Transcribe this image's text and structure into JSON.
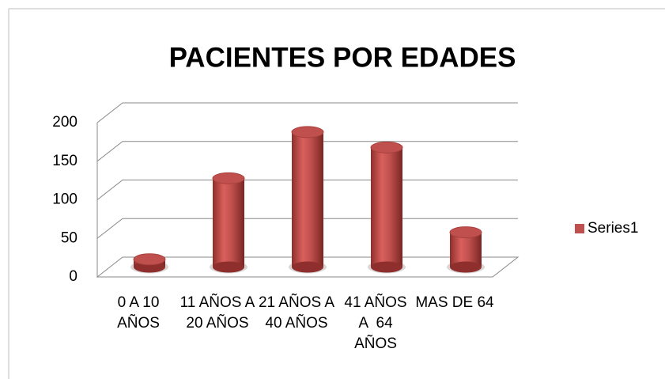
{
  "chart_data": {
    "type": "bar3d",
    "title": "PACIENTES POR EDADES",
    "categories": [
      "0 A 10 AÑOS",
      "11 AÑOS A 20 AÑOS",
      "21 AÑOS A 40 AÑOS",
      "41 AÑOS  A  64 AÑOS",
      "MAS DE 64"
    ],
    "series": [
      {
        "name": "Series1",
        "color": "#c0504d",
        "values": [
          10,
          115,
          175,
          155,
          45
        ]
      }
    ],
    "ylim": [
      0,
      200
    ],
    "yticks": [
      0,
      50,
      100,
      150,
      200
    ],
    "grid": true,
    "legend": "right"
  }
}
